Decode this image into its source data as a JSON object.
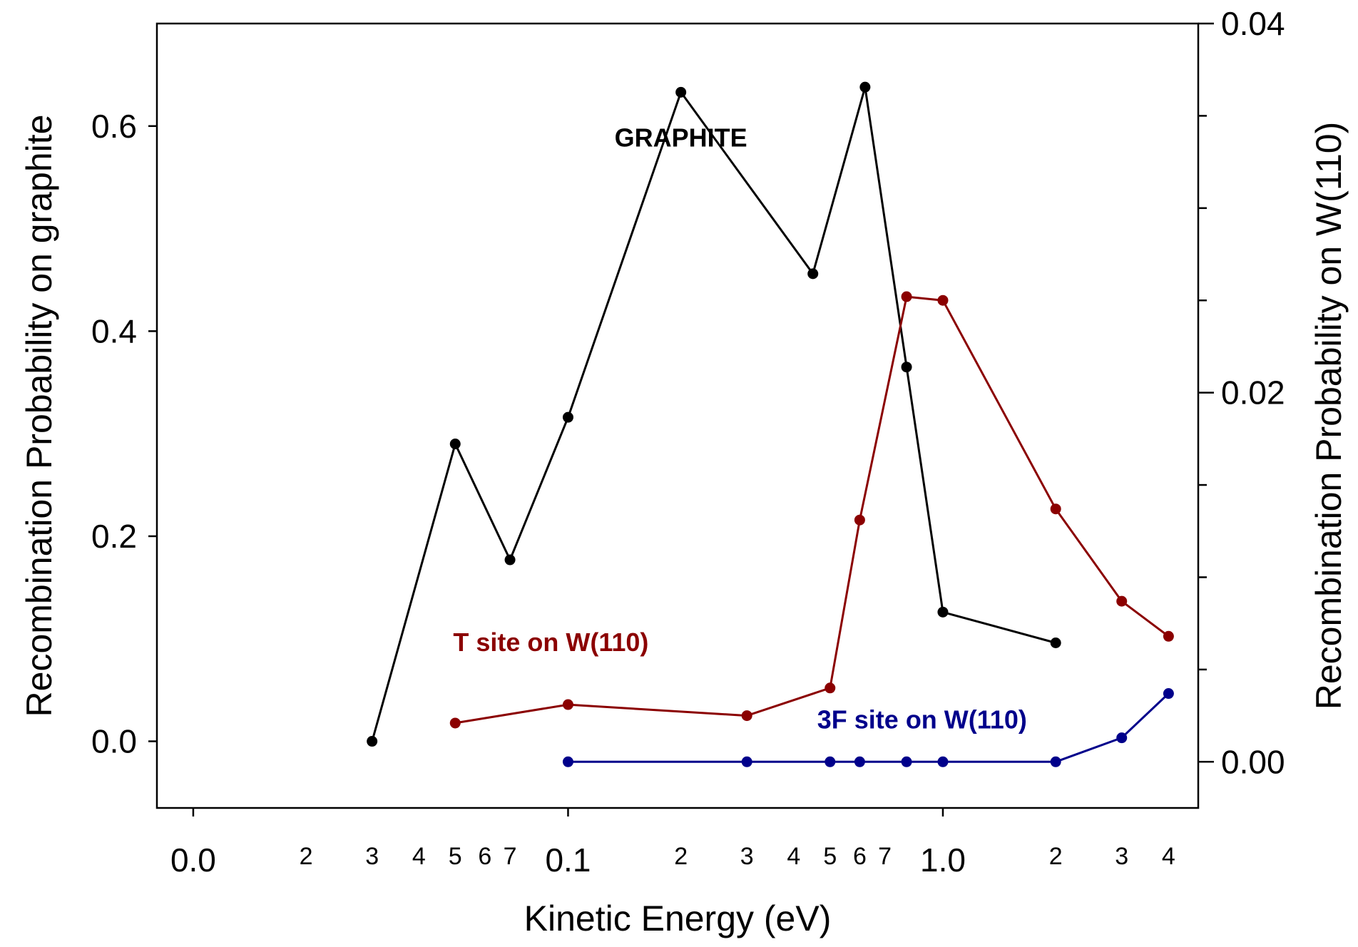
{
  "chart_data": {
    "type": "line",
    "xlabel": "Kinetic Energy (eV)",
    "ylabel": "Recombination Probability on graphite",
    "ylabel_right": "Recombination Probability on W(110)",
    "x_scale": "log",
    "xlim": [
      0.008,
      4.8
    ],
    "ylim_left": [
      -0.065,
      0.7
    ],
    "ylim_right": [
      -0.0025,
      0.04
    ],
    "grid": false,
    "x_major_ticks": [
      {
        "value": 0.01,
        "label": "0.0"
      },
      {
        "value": 0.1,
        "label": "0.1"
      },
      {
        "value": 1.0,
        "label": "1.0"
      }
    ],
    "x_minor_ticks": [
      {
        "value": 0.02,
        "label": "2"
      },
      {
        "value": 0.03,
        "label": "3"
      },
      {
        "value": 0.04,
        "label": "4"
      },
      {
        "value": 0.05,
        "label": "5"
      },
      {
        "value": 0.06,
        "label": "6"
      },
      {
        "value": 0.07,
        "label": "7"
      },
      {
        "value": 0.2,
        "label": "2"
      },
      {
        "value": 0.3,
        "label": "3"
      },
      {
        "value": 0.4,
        "label": "4"
      },
      {
        "value": 0.5,
        "label": "5"
      },
      {
        "value": 0.6,
        "label": "6"
      },
      {
        "value": 0.7,
        "label": "7"
      },
      {
        "value": 2,
        "label": "2"
      },
      {
        "value": 3,
        "label": "3"
      },
      {
        "value": 4,
        "label": "4"
      }
    ],
    "y_left_ticks": [
      {
        "value": 0.0,
        "label": "0.0"
      },
      {
        "value": 0.2,
        "label": "0.2"
      },
      {
        "value": 0.4,
        "label": "0.4"
      },
      {
        "value": 0.6,
        "label": "0.6"
      }
    ],
    "y_right_major_ticks": [
      {
        "value": 0.0,
        "label": "0.00"
      },
      {
        "value": 0.02,
        "label": "0.02"
      },
      {
        "value": 0.04,
        "label": "0.04"
      }
    ],
    "y_right_minor_ticks": [
      0.005,
      0.01,
      0.015,
      0.025,
      0.03,
      0.035
    ],
    "series": [
      {
        "name": "GRAPHITE",
        "axis": "left",
        "color": "#000000",
        "label_anchor": {
          "x": 0.2,
          "y": 0.58
        },
        "points": [
          {
            "x": 0.03,
            "y": 0.0
          },
          {
            "x": 0.05,
            "y": 0.29
          },
          {
            "x": 0.07,
            "y": 0.177
          },
          {
            "x": 0.1,
            "y": 0.316
          },
          {
            "x": 0.2,
            "y": 0.633
          },
          {
            "x": 0.45,
            "y": 0.456
          },
          {
            "x": 0.62,
            "y": 0.638
          },
          {
            "x": 0.8,
            "y": 0.365
          },
          {
            "x": 1.0,
            "y": 0.126
          },
          {
            "x": 2.0,
            "y": 0.096
          }
        ]
      },
      {
        "name": "T site on W(110)",
        "axis": "right",
        "color": "#8b0000",
        "label_anchor": {
          "x": 0.09,
          "y": 0.006
        },
        "points": [
          {
            "x": 0.05,
            "y": 0.0021
          },
          {
            "x": 0.1,
            "y": 0.0031
          },
          {
            "x": 0.3,
            "y": 0.0025
          },
          {
            "x": 0.5,
            "y": 0.004
          },
          {
            "x": 0.6,
            "y": 0.0131
          },
          {
            "x": 0.8,
            "y": 0.0252
          },
          {
            "x": 1.0,
            "y": 0.025
          },
          {
            "x": 2.0,
            "y": 0.0137
          },
          {
            "x": 3.0,
            "y": 0.0087
          },
          {
            "x": 4.0,
            "y": 0.0068
          }
        ]
      },
      {
        "name": "3F site on W(110)",
        "axis": "right",
        "color": "#00008b",
        "label_anchor": {
          "x": 0.88,
          "y": 0.0018
        },
        "points": [
          {
            "x": 0.1,
            "y": 0.0
          },
          {
            "x": 0.3,
            "y": 0.0
          },
          {
            "x": 0.5,
            "y": 0.0
          },
          {
            "x": 0.6,
            "y": 0.0
          },
          {
            "x": 0.8,
            "y": 0.0
          },
          {
            "x": 1.0,
            "y": 0.0
          },
          {
            "x": 2.0,
            "y": 0.0
          },
          {
            "x": 3.0,
            "y": 0.0013
          },
          {
            "x": 4.0,
            "y": 0.0037
          }
        ]
      }
    ]
  }
}
